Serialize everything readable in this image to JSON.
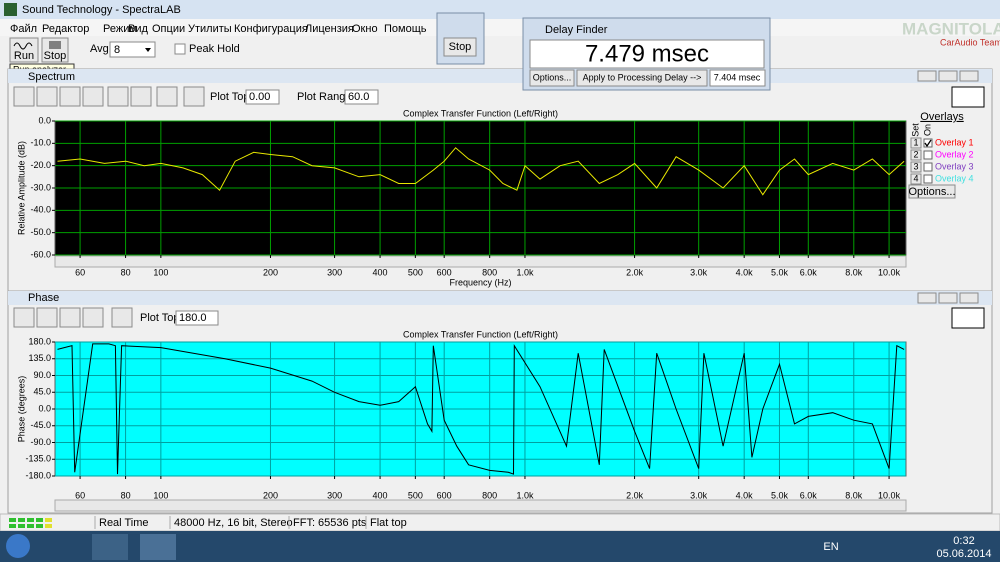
{
  "window": {
    "title": "Sound Technology - SpectraLAB"
  },
  "menu": [
    "Файл",
    "Редактор",
    "Режим",
    "Вид",
    "Опции",
    "Утилиты",
    "Конфигурация",
    "Лицензия",
    "Окно",
    "Помощь"
  ],
  "toolbar": {
    "run": "Run",
    "stop": "Stop",
    "avg_label": "Avg:",
    "avg_value": "8",
    "peak_hold": "Peak Hold",
    "tooltip": "Run analyzer"
  },
  "stop_window": {
    "button": "Stop"
  },
  "delay_finder": {
    "title": "Delay Finder",
    "delay": "7.479 msec",
    "options": "Options...",
    "apply": "Apply to Processing Delay -->",
    "processing_delay": "7.404 msec"
  },
  "watermark": {
    "logo": "MAGNITOLA",
    "team": "CarAudio Team"
  },
  "spectrum": {
    "panel_title": "Spectrum",
    "plot_top_label": "Plot Top:",
    "plot_top": "0.00",
    "plot_range_label": "Plot Range:",
    "plot_range": "60.0",
    "chart_data": {
      "type": "line",
      "title": "Complex Transfer Function (Left/Right)",
      "x_label": "Frequency (Hz)",
      "y_label": "Relative Amplitude (dB)",
      "x_scale": "log",
      "grid": true,
      "background": "#000000",
      "grid_color": "#00a000",
      "xlim": [
        51.2,
        11130
      ],
      "ylim": [
        -60,
        0
      ],
      "xticks": [
        60,
        80,
        100,
        200,
        300,
        400,
        500,
        600,
        800,
        {
          "value": 1000,
          "label": "1.0k"
        },
        {
          "value": 2000,
          "label": "2.0k"
        },
        {
          "value": 3000,
          "label": "3.0k"
        },
        {
          "value": 4000,
          "label": "4.0k"
        },
        {
          "value": 5000,
          "label": "5.0k"
        },
        {
          "value": 6000,
          "label": "6.0k"
        },
        {
          "value": 8000,
          "label": "8.0k"
        },
        {
          "value": 10000,
          "label": "10.0k"
        }
      ],
      "yticks": [
        {
          "value": 0,
          "label": "0.0"
        },
        {
          "value": -10,
          "label": "-10.0"
        },
        {
          "value": -20,
          "label": "-20.0"
        },
        {
          "value": -30,
          "label": "-30.0"
        },
        {
          "value": -40,
          "label": "-40.0"
        },
        {
          "value": -50,
          "label": "-50.0"
        },
        {
          "value": -60,
          "label": "-60.0"
        }
      ],
      "x": [
        52,
        60,
        70,
        80,
        90,
        100,
        115,
        130,
        145,
        160,
        180,
        200,
        230,
        260,
        300,
        350,
        400,
        450,
        500,
        560,
        600,
        645,
        700,
        800,
        870,
        950,
        1000,
        1100,
        1250,
        1400,
        1600,
        1800,
        2000,
        2300,
        2600,
        3000,
        3500,
        4000,
        4500,
        5000,
        5500,
        6000,
        7000,
        8000,
        9000,
        10000,
        11000
      ],
      "series": [
        {
          "color": "#e8e800",
          "values": [
            -18,
            -17,
            -19,
            -18,
            -20,
            -19,
            -21,
            -24,
            -31,
            -18,
            -14,
            -15,
            -16,
            -20,
            -21,
            -25,
            -24,
            -28,
            -28,
            -22,
            -18,
            -12,
            -17,
            -22,
            -28,
            -31,
            -20,
            -26,
            -20,
            -18,
            -28,
            -24,
            -19,
            -30,
            -16,
            -22,
            -30,
            -20,
            -33,
            -22,
            -17,
            -24,
            -19,
            -22,
            -17,
            -24,
            -18
          ]
        }
      ]
    }
  },
  "overlays": {
    "title": "Overlays",
    "set": "Set",
    "on": "On",
    "options": "Options...",
    "items": [
      {
        "set": "1",
        "name": "Overlay 1",
        "color": "#ff0000",
        "checked": true
      },
      {
        "set": "2",
        "name": "Overlay 2",
        "color": "#ff00ff",
        "checked": false
      },
      {
        "set": "3",
        "name": "Overlay 3",
        "color": "#8040c0",
        "checked": false
      },
      {
        "set": "4",
        "name": "Overlay 4",
        "color": "#40e0e0",
        "checked": false
      }
    ]
  },
  "phase": {
    "panel_title": "Phase",
    "plot_top_label": "Plot Top:",
    "plot_top": "180.0",
    "chart_data": {
      "type": "line",
      "title": "Complex Transfer Function (Left/Right)",
      "y_label": "Phase (degrees)",
      "x_scale": "log",
      "grid": true,
      "background": "#00ffff",
      "grid_color": "#00a0a0",
      "xlim": [
        51.2,
        11130
      ],
      "ylim": [
        -180,
        180
      ],
      "xticks": [
        60,
        80,
        100,
        200,
        300,
        400,
        500,
        600,
        800,
        {
          "value": 1000,
          "label": "1.0k"
        },
        {
          "value": 2000,
          "label": "2.0k"
        },
        {
          "value": 3000,
          "label": "3.0k"
        },
        {
          "value": 4000,
          "label": "4.0k"
        },
        {
          "value": 5000,
          "label": "5.0k"
        },
        {
          "value": 6000,
          "label": "6.0k"
        },
        {
          "value": 8000,
          "label": "8.0k"
        },
        {
          "value": 10000,
          "label": "10.0k"
        }
      ],
      "yticks": [
        {
          "value": 180,
          "label": "180.0"
        },
        {
          "value": 135,
          "label": "135.0"
        },
        {
          "value": 90,
          "label": "90.0"
        },
        {
          "value": 45,
          "label": "45.0"
        },
        {
          "value": 0,
          "label": "0.0"
        },
        {
          "value": -45,
          "label": "-45.0"
        },
        {
          "value": -90,
          "label": "-90.0"
        },
        {
          "value": -135,
          "label": "-135.0"
        },
        {
          "value": -180,
          "label": "-180.0"
        }
      ],
      "x": [
        52,
        57,
        58,
        65,
        72,
        75,
        76,
        78,
        100,
        150,
        200,
        260,
        300,
        350,
        400,
        450,
        500,
        540,
        555,
        560,
        600,
        650,
        700,
        800,
        900,
        930,
        935,
        1100,
        1300,
        1400,
        1600,
        1650,
        2000,
        2200,
        2300,
        2600,
        3000,
        3100,
        3500,
        4000,
        4200,
        4500,
        5000,
        5500,
        6000,
        7000,
        8000,
        9000,
        10000,
        10500,
        11000
      ],
      "series": [
        {
          "color": "#000000",
          "values": [
            160,
            170,
            -170,
            175,
            175,
            170,
            -175,
            170,
            165,
            135,
            110,
            75,
            45,
            20,
            10,
            20,
            60,
            -40,
            -60,
            170,
            -30,
            -100,
            -150,
            -165,
            -170,
            -175,
            170,
            60,
            -100,
            150,
            -150,
            160,
            -60,
            -160,
            150,
            0,
            -160,
            150,
            -100,
            150,
            -130,
            0,
            120,
            -40,
            -20,
            -10,
            -30,
            -40,
            -160,
            170,
            160
          ]
        }
      ]
    }
  },
  "status": [
    "Real Time",
    "48000 Hz, 16 bit, Stereo",
    "FFT: 65536 pts",
    "Flat top"
  ],
  "taskbar": {
    "lang": "EN",
    "time": "0:32",
    "date": "05.06.2014"
  }
}
